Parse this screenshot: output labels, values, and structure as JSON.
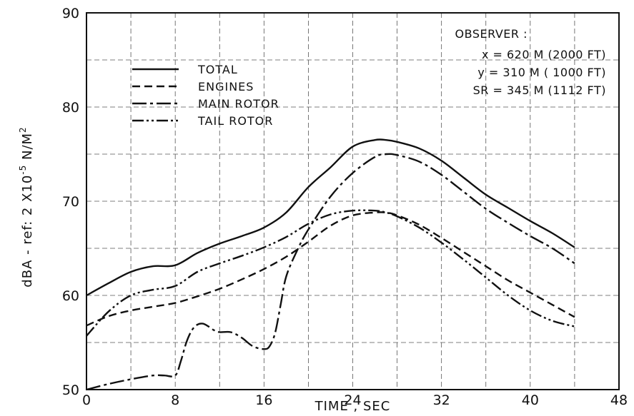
{
  "chart_data": {
    "type": "line",
    "xlabel": "TIME , SEC",
    "ylabel": "dBA - ref: 2 X10",
    "ylabel_exp": "-5",
    "ylabel_unit": " N/M",
    "ylabel_unit_exp": "2",
    "xlim": [
      0,
      48
    ],
    "ylim": [
      50,
      90
    ],
    "xticks": [
      0,
      8,
      16,
      24,
      32,
      40,
      48
    ],
    "yticks": [
      50,
      60,
      70,
      80,
      90
    ],
    "grid": true,
    "legend_position": "top-left",
    "series": [
      {
        "name": "TOTAL",
        "dash": "solid",
        "x": [
          0,
          2,
          4,
          6,
          8,
          10,
          12,
          14,
          16,
          18,
          20,
          22,
          24,
          26,
          27,
          28,
          30,
          32,
          34,
          36,
          38,
          40,
          42,
          44
        ],
        "y": [
          60,
          61.3,
          62.5,
          63.1,
          63.2,
          64.5,
          65.5,
          66.3,
          67.2,
          68.8,
          71.5,
          73.6,
          75.8,
          76.5,
          76.5,
          76.3,
          75.6,
          74.3,
          72.5,
          70.7,
          69.3,
          67.9,
          66.6,
          65.1
        ]
      },
      {
        "name": "ENGINES",
        "dash": "dashed",
        "x": [
          0,
          2,
          4,
          6,
          8,
          10,
          12,
          14,
          16,
          18,
          20,
          22,
          24,
          26,
          27,
          28,
          30,
          32,
          34,
          36,
          38,
          40,
          42,
          44
        ],
        "y": [
          56.8,
          57.8,
          58.4,
          58.8,
          59.2,
          59.9,
          60.7,
          61.7,
          62.8,
          64.1,
          65.7,
          67.4,
          68.5,
          68.8,
          68.8,
          68.5,
          67.5,
          66.1,
          64.6,
          63.1,
          61.6,
          60.3,
          59,
          57.7
        ]
      },
      {
        "name": "MAIN ROTOR",
        "dash": "dash-dot",
        "x": [
          0,
          2,
          4,
          6,
          7,
          8,
          8.5,
          9,
          9.5,
          10,
          10.5,
          11,
          11.5,
          12,
          13,
          14,
          15,
          16,
          16.5,
          17,
          17.5,
          18,
          19,
          20,
          22,
          24,
          26,
          27,
          28,
          30,
          32,
          34,
          36,
          38,
          40,
          42,
          44
        ],
        "y": [
          50,
          50.6,
          51.1,
          51.5,
          51.5,
          51.5,
          53,
          55,
          56.3,
          56.9,
          57,
          56.7,
          56.3,
          56.1,
          56.1,
          55.5,
          54.6,
          54.3,
          54.6,
          56,
          59,
          62,
          64.8,
          67,
          70.5,
          73,
          74.7,
          75,
          74.9,
          74.2,
          72.8,
          71,
          69.2,
          67.7,
          66.3,
          65,
          63.4
        ]
      },
      {
        "name": "TAIL ROTOR",
        "dash": "dash-dot-dot",
        "x": [
          0,
          2,
          4,
          6,
          8,
          10,
          12,
          14,
          16,
          18,
          20,
          22,
          24,
          26,
          27,
          28,
          30,
          32,
          34,
          36,
          38,
          40,
          42,
          44
        ],
        "y": [
          55.7,
          58.3,
          60,
          60.6,
          61,
          62.5,
          63.4,
          64.2,
          65.1,
          66.2,
          67.6,
          68.6,
          69,
          69,
          68.8,
          68.4,
          67.2,
          65.6,
          63.8,
          61.9,
          60,
          58.4,
          57.3,
          56.7
        ]
      }
    ],
    "annotation": {
      "title": "OBSERVER :",
      "lines": [
        "x = 620 M (2000 FT)",
        "y = 310 M ( 1000 FT)",
        "SR = 345 M (1112 FT)"
      ]
    }
  }
}
